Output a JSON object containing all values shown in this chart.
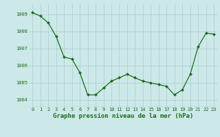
{
  "x": [
    0,
    1,
    2,
    3,
    4,
    5,
    6,
    7,
    8,
    9,
    10,
    11,
    12,
    13,
    14,
    15,
    16,
    17,
    18,
    19,
    20,
    21,
    22,
    23
  ],
  "y": [
    1009.1,
    1008.9,
    1008.5,
    1007.7,
    1006.5,
    1006.4,
    1005.6,
    1004.3,
    1004.3,
    1004.7,
    1005.1,
    1005.3,
    1005.5,
    1005.3,
    1005.1,
    1005.0,
    1004.9,
    1004.8,
    1004.3,
    1004.6,
    1005.5,
    1007.1,
    1007.9,
    1007.85
  ],
  "line_color": "#1a6b1a",
  "marker": "D",
  "marker_size": 2.0,
  "bg_color": "#cce8e8",
  "grid_color": "#aacccc",
  "xlabel": "Graphe pression niveau de la mer (hPa)",
  "xlabel_color": "#1a6b1a",
  "xlabel_fontsize": 6.5,
  "ytick_labels": [
    "1004",
    "1005",
    "1006",
    "1007",
    "1008",
    "1009"
  ],
  "ytick_values": [
    1004,
    1005,
    1006,
    1007,
    1008,
    1009
  ],
  "ylim": [
    1003.6,
    1009.6
  ],
  "xlim": [
    -0.5,
    23.5
  ],
  "xticks": [
    0,
    1,
    2,
    3,
    4,
    5,
    6,
    7,
    8,
    9,
    10,
    11,
    12,
    13,
    14,
    15,
    16,
    17,
    18,
    19,
    20,
    21,
    22,
    23
  ],
  "tick_fontsize": 5.0,
  "tick_color": "#1a6b1a",
  "linewidth": 0.9
}
